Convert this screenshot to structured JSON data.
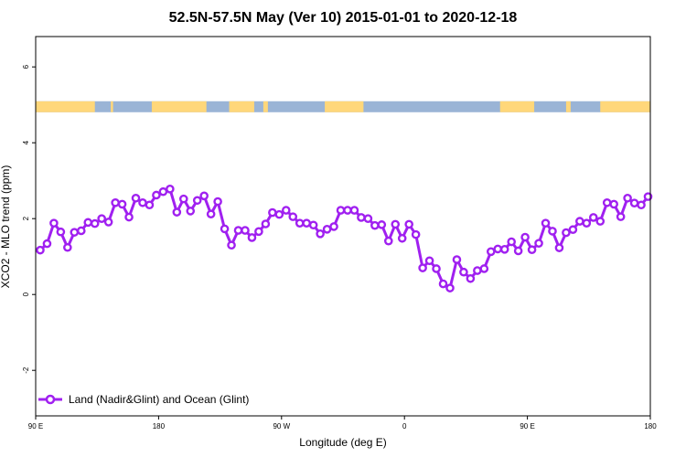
{
  "chart_data": {
    "type": "line",
    "title": "52.5N-57.5N May (Ver 10)   2015-01-01 to 2020-12-18",
    "xlabel": "Longitude (deg E)",
    "ylabel": "XCO2 - MLO trend (ppm)",
    "xlim": [
      -90,
      180
    ],
    "ylim": [
      -3.2,
      6.8
    ],
    "x_ticks": [
      -90,
      -36,
      18,
      72,
      126,
      180
    ],
    "x_tick_labels": [
      "90 E",
      "180",
      "90 W",
      "0",
      "90 E",
      "180"
    ],
    "y_ticks": [
      -2,
      0,
      2,
      4,
      6
    ],
    "y_tick_labels": [
      "-2",
      "0",
      "2",
      "4",
      "6"
    ],
    "legend_position": "bottom-left",
    "series": [
      {
        "name": "Land (Nadir&Glint) and Ocean (Glint)",
        "color": "#a020f0",
        "x": [
          -88,
          -85,
          -82,
          -79,
          -76,
          -73,
          -70,
          -67,
          -64,
          -61,
          -58,
          -55,
          -52,
          -49,
          -46,
          -43,
          -40,
          -37,
          -34,
          -31,
          -28,
          -25,
          -22,
          -19,
          -16,
          -13,
          -10,
          -7,
          -4,
          -1,
          2,
          5,
          8,
          11,
          14,
          17,
          20,
          23,
          26,
          29,
          32,
          35,
          38,
          41,
          44,
          47,
          50,
          53,
          56,
          59,
          62,
          65,
          68,
          71,
          74,
          77,
          80,
          83,
          86,
          89,
          92,
          95,
          98,
          101,
          104,
          107,
          110,
          113,
          116,
          119,
          122,
          125,
          128,
          131,
          134,
          137,
          140,
          143,
          146,
          149,
          152,
          155,
          158,
          161,
          164,
          167,
          170,
          173,
          176,
          179
        ],
        "y": [
          1.17,
          1.34,
          1.88,
          1.65,
          1.24,
          1.64,
          1.68,
          1.9,
          1.87,
          2.0,
          1.91,
          2.42,
          2.38,
          2.04,
          2.54,
          2.42,
          2.36,
          2.62,
          2.71,
          2.78,
          2.17,
          2.52,
          2.2,
          2.48,
          2.6,
          2.12,
          2.45,
          1.73,
          1.3,
          1.69,
          1.69,
          1.5,
          1.66,
          1.86,
          2.16,
          2.11,
          2.22,
          2.05,
          1.88,
          1.88,
          1.83,
          1.6,
          1.72,
          1.79,
          2.22,
          2.22,
          2.22,
          2.03,
          2.0,
          1.82,
          1.84,
          1.41,
          1.85,
          1.48,
          1.85,
          1.58,
          0.7,
          0.89,
          0.68,
          0.28,
          0.17,
          0.92,
          0.59,
          0.42,
          0.63,
          0.68,
          1.13,
          1.2,
          1.19,
          1.39,
          1.15,
          1.51,
          1.18,
          1.35,
          1.88,
          1.67,
          1.23,
          1.63,
          1.71,
          1.93,
          1.88,
          2.03,
          1.93,
          2.42,
          2.38,
          2.05,
          2.54,
          2.41,
          2.36,
          2.58
        ]
      }
    ],
    "land_ocean_strip": {
      "y_center": 4.95,
      "ocean_color": "#9ab4d6",
      "land_color": "#ffd77a",
      "land_segments": [
        [
          -90,
          -64
        ],
        [
          -57,
          -56
        ],
        [
          -39,
          -15
        ],
        [
          -5,
          6
        ],
        [
          10,
          12
        ],
        [
          37,
          54
        ],
        [
          114,
          129
        ],
        [
          143,
          145
        ],
        [
          158,
          180
        ]
      ]
    }
  }
}
